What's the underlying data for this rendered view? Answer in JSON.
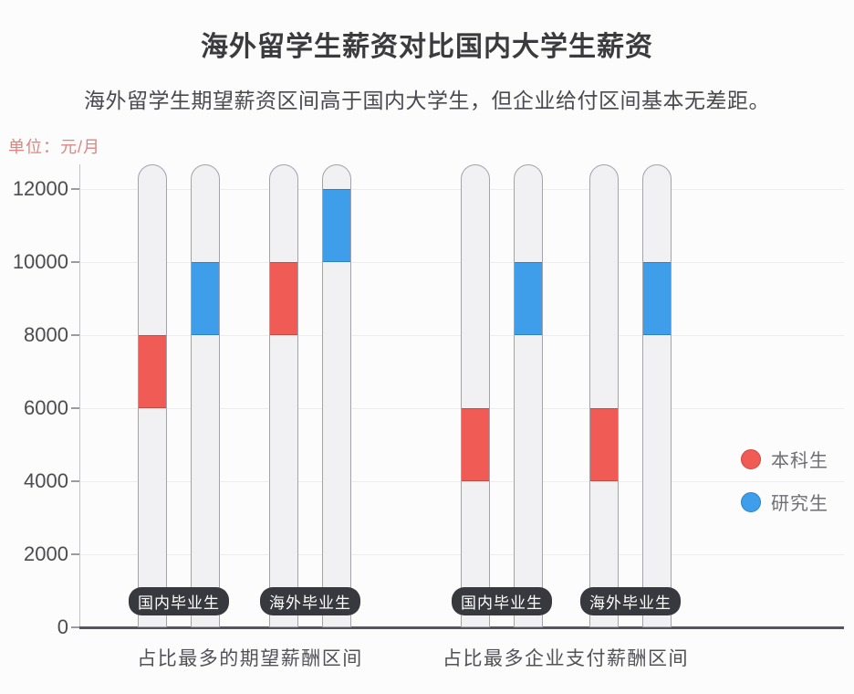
{
  "page": {
    "title": "海外留学生薪资对比国内大学生薪资",
    "subtitle": "海外留学生期望薪资区间高于国内大学生，但企业给付区间基本无差距。",
    "unit_label": "单位：元/月"
  },
  "chart_data": {
    "type": "range-bar",
    "title": "海外留学生薪资对比国内大学生薪资",
    "subtitle": "海外留学生期望薪资区间高于国内大学生，但企业给付区间基本无差距。",
    "unit": "元/月",
    "y_axis": {
      "min": 0,
      "max": 12000,
      "step": 2000,
      "ticks": [
        0,
        2000,
        4000,
        6000,
        8000,
        10000,
        12000
      ],
      "gridlines": true
    },
    "series": [
      {
        "name": "本科生",
        "color": "#f15b56",
        "border_color": "#cf4742"
      },
      {
        "name": "研究生",
        "color": "#3e9ee9",
        "border_color": "#2c82c9"
      }
    ],
    "legend_position": "right",
    "groups": [
      {
        "label": "占比最多的期望薪酬区间",
        "pairs": [
          {
            "label": "国内毕业生",
            "values": [
              {
                "series": "本科生",
                "from": 6000,
                "to": 8000
              },
              {
                "series": "研究生",
                "from": 8000,
                "to": 10000
              }
            ]
          },
          {
            "label": "海外毕业生",
            "values": [
              {
                "series": "本科生",
                "from": 8000,
                "to": 10000
              },
              {
                "series": "研究生",
                "from": 10000,
                "to": 12000
              }
            ]
          }
        ]
      },
      {
        "label": "占比最多企业支付薪酬区间",
        "pairs": [
          {
            "label": "国内毕业生",
            "values": [
              {
                "series": "本科生",
                "from": 4000,
                "to": 6000
              },
              {
                "series": "研究生",
                "from": 8000,
                "to": 10000
              }
            ]
          },
          {
            "label": "海外毕业生",
            "values": [
              {
                "series": "本科生",
                "from": 4000,
                "to": 6000
              },
              {
                "series": "研究生",
                "from": 8000,
                "to": 10000
              }
            ]
          }
        ]
      }
    ],
    "capsule_color": "#f1f1f3",
    "capsule_border_color": "#a3a3a8",
    "badge_color": "#38383f",
    "badge_text_color": "#ffffff"
  }
}
